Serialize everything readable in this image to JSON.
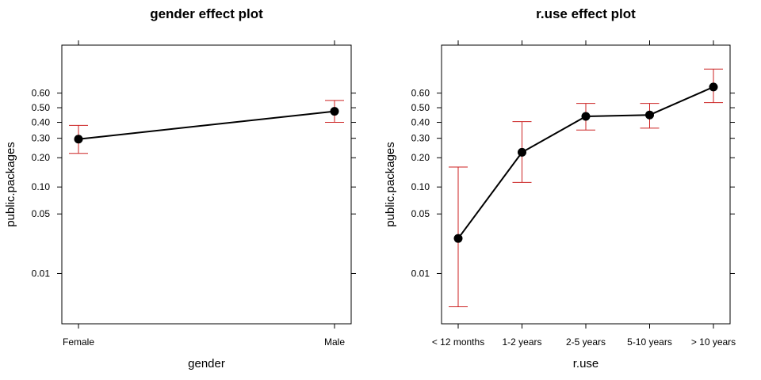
{
  "chart_data": [
    {
      "type": "line",
      "title": "gender effect plot",
      "xlabel": "gender",
      "ylabel": "public.packages",
      "categories": [
        "Female",
        "Male"
      ],
      "values": [
        0.295,
        0.475
      ],
      "lower": [
        0.22,
        0.4
      ],
      "upper": [
        0.38,
        0.55
      ],
      "yscale": "logit",
      "yticks": [
        0.01,
        0.05,
        0.1,
        0.2,
        0.3,
        0.4,
        0.5,
        0.6
      ],
      "yticklabels": [
        "0.01",
        "0.05",
        "0.10",
        "0.20",
        "0.30",
        "0.40",
        "0.50",
        "0.60"
      ],
      "ylim": [
        0.0025,
        0.85
      ],
      "grid": false
    },
    {
      "type": "line",
      "title": "r.use effect plot",
      "xlabel": "r.use",
      "ylabel": "public.packages",
      "categories": [
        "< 12 months",
        "1-2 years",
        "2-5 years",
        "5-10 years",
        "> 10 years"
      ],
      "values": [
        0.026,
        0.225,
        0.44,
        0.45,
        0.64
      ],
      "lower": [
        0.004,
        0.112,
        0.35,
        0.362,
        0.535
      ],
      "upper": [
        0.162,
        0.405,
        0.53,
        0.53,
        0.745
      ],
      "yscale": "logit",
      "yticks": [
        0.01,
        0.05,
        0.1,
        0.2,
        0.3,
        0.4,
        0.5,
        0.6
      ],
      "yticklabels": [
        "0.01",
        "0.05",
        "0.10",
        "0.20",
        "0.30",
        "0.40",
        "0.50",
        "0.60"
      ],
      "ylim": [
        0.0025,
        0.85
      ],
      "grid": false
    }
  ],
  "colors": {
    "line": "#000000",
    "errorbar": "#cc2222",
    "point": "#000000",
    "frame": "#000000"
  }
}
